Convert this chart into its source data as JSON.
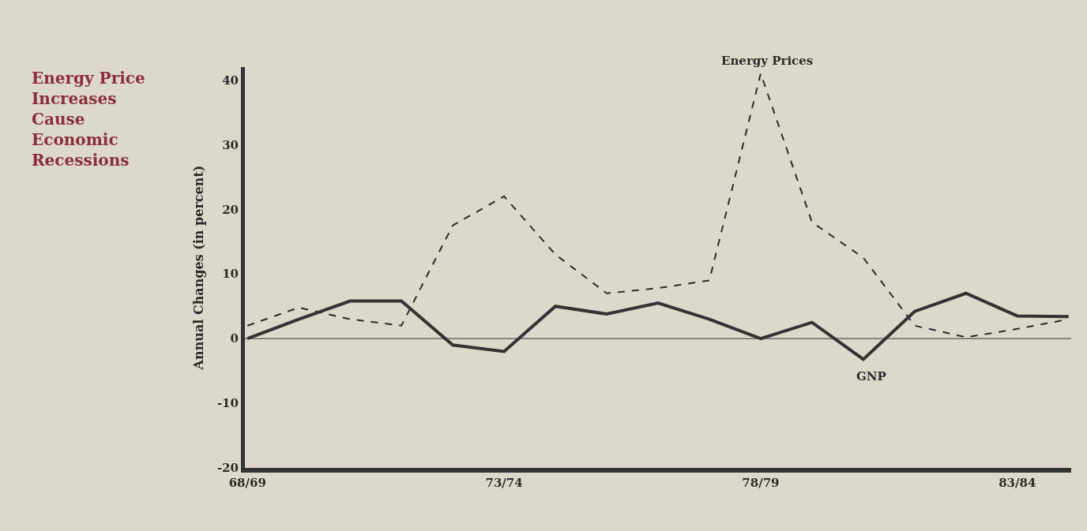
{
  "chart_data": {
    "type": "line",
    "title": "Energy Price Increases Cause Economic Recessions",
    "ylabel": "Annual Changes (in percent)",
    "categories": [
      "68/69",
      null,
      null,
      null,
      null,
      "73/74",
      null,
      null,
      null,
      null,
      "78/79",
      null,
      null,
      null,
      null,
      "83/84",
      null
    ],
    "series": [
      {
        "name": "Energy Prices",
        "color": "#2a2a2a",
        "line_style": "dashed",
        "values": [
          2,
          4.8,
          3,
          2,
          17.5,
          22,
          13,
          7,
          7.8,
          9,
          41,
          18,
          12.5,
          2,
          0.2,
          1.5,
          3
        ]
      },
      {
        "name": "GNP",
        "color": "#333333",
        "line_style": "solid",
        "values": [
          0,
          3,
          5.8,
          5.8,
          -1,
          -2,
          5,
          3.8,
          5.5,
          3,
          0,
          2.5,
          -3.2,
          4.2,
          7,
          3.5,
          3.4
        ]
      }
    ],
    "ylim": [
      -20,
      42
    ],
    "yticks": [
      -20,
      -10,
      0,
      10,
      20,
      30,
      40
    ],
    "ref_lines": [
      {
        "axis": "y",
        "value": 0,
        "color": "#333333"
      }
    ],
    "grid": false,
    "legend": false,
    "marker": "none"
  }
}
